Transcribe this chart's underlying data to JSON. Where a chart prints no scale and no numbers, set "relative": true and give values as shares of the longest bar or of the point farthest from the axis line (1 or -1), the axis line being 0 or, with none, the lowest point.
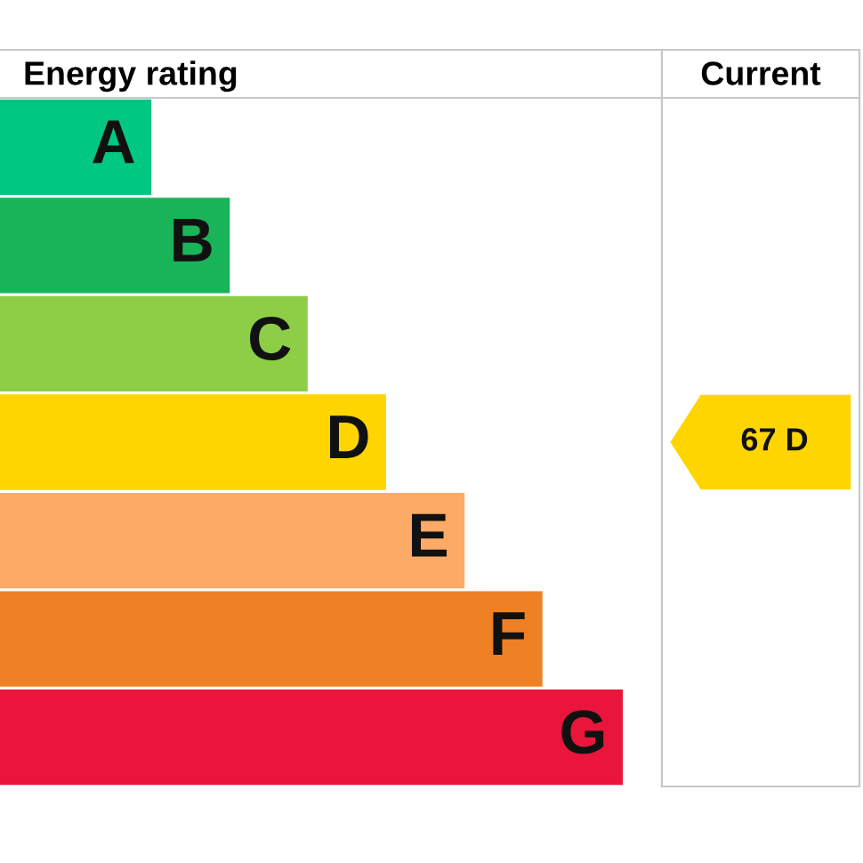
{
  "chart_data": {
    "type": "bar",
    "orientation": "horizontal",
    "relative": true,
    "title": "Energy rating",
    "subtitle": "Current",
    "categories": [
      "A",
      "B",
      "C",
      "D",
      "E",
      "F",
      "G"
    ],
    "values": [
      0.243,
      0.369,
      0.494,
      0.62,
      0.746,
      0.871,
      1.0
    ],
    "colors": [
      "#00c781",
      "#19b459",
      "#8dce46",
      "#ffd500",
      "#fcaa65",
      "#ef8023",
      "#e9153b"
    ],
    "annotations": [
      "67 D"
    ]
  }
}
